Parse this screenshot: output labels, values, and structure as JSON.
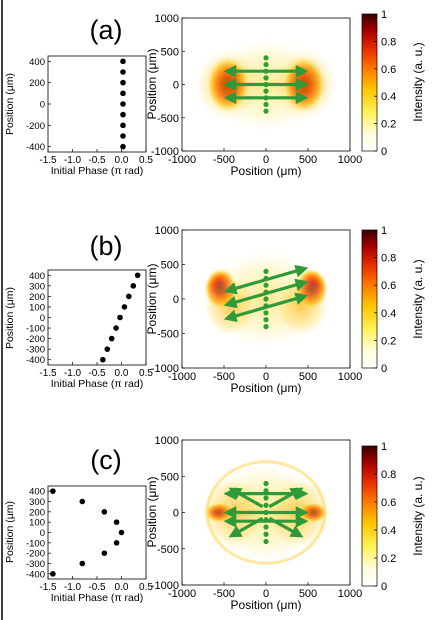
{
  "chart_data": [
    {
      "panel": "(a)",
      "type": "scatter",
      "xlabel": "Initial Phase (π rad)",
      "ylabel": "Position (μm)",
      "xlim": [
        -1.5,
        0.5
      ],
      "ylim": [
        -450,
        450
      ],
      "xticks": [
        "-1.5",
        "-1.0",
        "-0.5",
        "0.0",
        "0.5"
      ],
      "yticks": [
        "-400",
        "-200",
        "0",
        "200",
        "400"
      ],
      "points": [
        {
          "x": 0.03,
          "y": 400
        },
        {
          "x": 0.03,
          "y": 300
        },
        {
          "x": 0.03,
          "y": 200
        },
        {
          "x": 0.03,
          "y": 100
        },
        {
          "x": 0.03,
          "y": 0
        },
        {
          "x": 0.03,
          "y": -100
        },
        {
          "x": 0.03,
          "y": -200
        },
        {
          "x": 0.03,
          "y": -300
        },
        {
          "x": 0.03,
          "y": -400
        }
      ]
    },
    {
      "panel": "(a)",
      "type": "heatmap",
      "xlabel": "Position (μm)",
      "ylabel": "Position (μm)",
      "colorbar_label": "Intensity (a. u.)",
      "xlim": [
        -1000,
        1000
      ],
      "ylim": [
        -1000,
        1000
      ],
      "xticks": [
        "-1000",
        "-500",
        "0",
        "500",
        "1000"
      ],
      "yticks": [
        "-1000",
        "-500",
        "0",
        "500",
        "1000"
      ],
      "colorbar_ticks": [
        "0",
        "0.2",
        "0.4",
        "0.6",
        "0.8",
        "1"
      ],
      "emitters_y": [
        -400,
        -300,
        -200,
        -100,
        0,
        100,
        200,
        300,
        400
      ],
      "arrows": "horizontal"
    },
    {
      "panel": "(b)",
      "type": "scatter",
      "xlabel": "Initial Phase (π rad)",
      "ylabel": "Position (μm)",
      "xlim": [
        -1.5,
        0.5
      ],
      "ylim": [
        -450,
        450
      ],
      "xticks": [
        "-1.5",
        "-1.0",
        "-0.5",
        "0.0",
        "0.5"
      ],
      "yticks": [
        "-400",
        "-300",
        "-200",
        "-100",
        "0",
        "100",
        "200",
        "300",
        "400"
      ],
      "points": [
        {
          "x": -0.38,
          "y": -400
        },
        {
          "x": -0.29,
          "y": -300
        },
        {
          "x": -0.2,
          "y": -200
        },
        {
          "x": -0.11,
          "y": -100
        },
        {
          "x": -0.03,
          "y": 0
        },
        {
          "x": 0.06,
          "y": 100
        },
        {
          "x": 0.15,
          "y": 200
        },
        {
          "x": 0.24,
          "y": 300
        },
        {
          "x": 0.33,
          "y": 400
        }
      ]
    },
    {
      "panel": "(b)",
      "type": "heatmap",
      "xlabel": "Position (μm)",
      "ylabel": "Position (μm)",
      "colorbar_label": "Intensity (a. u.)",
      "xlim": [
        -1000,
        1000
      ],
      "ylim": [
        -1000,
        1000
      ],
      "xticks": [
        "-1000",
        "-500",
        "0",
        "500",
        "1000"
      ],
      "yticks": [
        "-1000",
        "-500",
        "0",
        "500",
        "1000"
      ],
      "colorbar_ticks": [
        "0",
        "0.2",
        "0.4",
        "0.6",
        "0.8",
        "1"
      ],
      "emitters_y": [
        -400,
        -300,
        -200,
        -100,
        0,
        100,
        200,
        300,
        400
      ],
      "arrows": "tilted"
    },
    {
      "panel": "(c)",
      "type": "scatter",
      "xlabel": "Initial Phase (π rad)",
      "ylabel": "Position (μm)",
      "xlim": [
        -1.5,
        0.5
      ],
      "ylim": [
        -450,
        450
      ],
      "xticks": [
        "-1.5",
        "-1.0",
        "-0.5",
        "0.0",
        "0.5"
      ],
      "yticks": [
        "-400",
        "-300",
        "-200",
        "-100",
        "0",
        "100",
        "200",
        "300",
        "400"
      ],
      "points": [
        {
          "x": -1.4,
          "y": 400
        },
        {
          "x": -0.8,
          "y": 300
        },
        {
          "x": -0.35,
          "y": 200
        },
        {
          "x": -0.1,
          "y": 100
        },
        {
          "x": 0.0,
          "y": 0
        },
        {
          "x": -0.1,
          "y": -100
        },
        {
          "x": -0.35,
          "y": -200
        },
        {
          "x": -0.8,
          "y": -300
        },
        {
          "x": -1.4,
          "y": -400
        }
      ]
    },
    {
      "panel": "(c)",
      "type": "heatmap",
      "xlabel": "Position (μm)",
      "ylabel": "Position (μm)",
      "colorbar_label": "Intensity (a. u.)",
      "xlim": [
        -1000,
        1000
      ],
      "ylim": [
        -1000,
        1000
      ],
      "xticks": [
        "-1000",
        "-500",
        "0",
        "500",
        "1000"
      ],
      "yticks": [
        "-1000",
        "-500",
        "0",
        "500",
        "1000"
      ],
      "colorbar_ticks": [
        "0",
        "0.2",
        "0.4",
        "0.6",
        "0.8",
        "1"
      ],
      "emitters_y": [
        -400,
        -300,
        -200,
        -100,
        0,
        100,
        200,
        300,
        400
      ],
      "arrows": "fan"
    }
  ],
  "colors": {
    "arrow": "#2e9a3a",
    "emitter": "#2ca02c",
    "colormap": [
      "#ffffff",
      "#fffde0",
      "#fff25a",
      "#ffc400",
      "#ff7a00",
      "#e52a00",
      "#a30000",
      "#3b0000"
    ]
  }
}
